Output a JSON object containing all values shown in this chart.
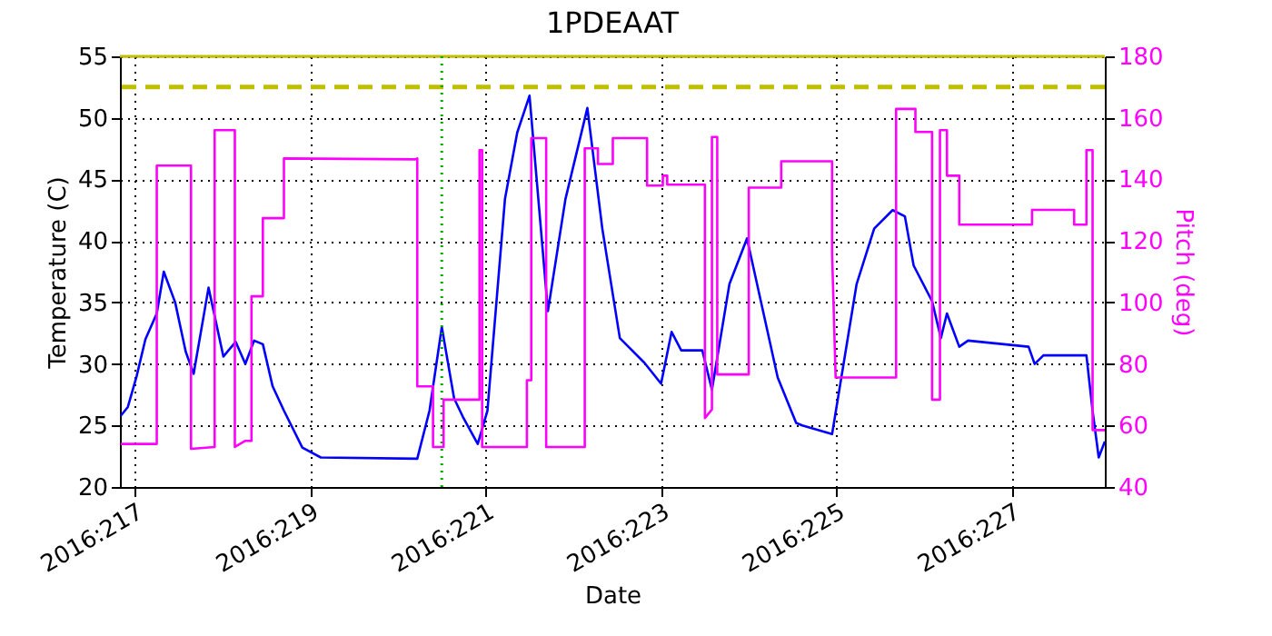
{
  "chart_data": {
    "type": "line",
    "title": "1PDEAAT",
    "xlabel": "Date",
    "ylabel": "Temperature (C)",
    "y2label": "Pitch (deg)",
    "xlim": [
      "2016-08-03T19:55",
      "2016-08-15T01:26"
    ],
    "xticks": [
      {
        "value": "2016-08-04",
        "label": "2016:217"
      },
      {
        "value": "2016-08-06",
        "label": "2016:219"
      },
      {
        "value": "2016-08-08",
        "label": "2016:221"
      },
      {
        "value": "2016-08-10",
        "label": "2016:223"
      },
      {
        "value": "2016-08-12",
        "label": "2016:225"
      },
      {
        "value": "2016-08-14",
        "label": "2016:227"
      }
    ],
    "ylim": [
      20,
      55
    ],
    "yticks": [
      20,
      25,
      30,
      35,
      40,
      45,
      50,
      55
    ],
    "y2lim": [
      40,
      180
    ],
    "y2ticks": [
      40,
      60,
      80,
      100,
      120,
      140,
      160,
      180
    ],
    "grid": true,
    "marker": "none",
    "line_style": "solid",
    "series": [
      {
        "color": "#0000ff",
        "x": [
          "2016-08-03T20:10",
          "2016-08-03T22:05",
          "2016-08-04T00:29",
          "2016-08-04T02:53",
          "2016-08-04T06:00",
          "2016-08-04T07:55",
          "2016-08-04T11:02",
          "2016-08-04T13:55",
          "2016-08-04T16:05",
          "2016-08-04T20:10",
          "2016-08-05T00:14",
          "2016-08-05T03:36",
          "2016-08-05T06:14",
          "2016-08-05T08:38",
          "2016-08-05T11:02",
          "2016-08-05T13:41",
          "2016-08-05T16:48",
          "2016-08-05T21:50",
          "2016-08-06T02:53",
          "2016-08-07T05:17",
          "2016-08-07T08:38",
          "2016-08-07T12:00",
          "2016-08-07T15:22",
          "2016-08-07T17:46",
          "2016-08-07T21:50",
          "2016-08-08T00:29",
          "2016-08-08T05:17",
          "2016-08-08T08:38",
          "2016-08-08T12:00",
          "2016-08-08T17:02",
          "2016-08-08T21:50",
          "2016-08-09T03:50",
          "2016-08-09T07:55",
          "2016-08-09T12:43",
          "2016-08-09T19:26",
          "2016-08-10T00:00",
          "2016-08-10T02:53",
          "2016-08-10T05:31",
          "2016-08-10T11:17",
          "2016-08-10T13:55",
          "2016-08-10T18:43",
          "2016-08-10T23:31",
          "2016-08-11T07:55",
          "2016-08-11T12:58",
          "2016-08-11T14:38",
          "2016-08-11T22:48",
          "2016-08-12T05:31",
          "2016-08-12T10:19",
          "2016-08-12T15:22",
          "2016-08-12T18:43",
          "2016-08-12T21:07",
          "2016-08-13T02:10",
          "2016-08-13T04:34",
          "2016-08-13T06:14",
          "2016-08-13T09:36",
          "2016-08-13T12:00",
          "2016-08-14T04:34",
          "2016-08-14T06:14",
          "2016-08-14T08:38",
          "2016-08-14T20:24",
          "2016-08-14T22:05",
          "2016-08-14T23:46",
          "2016-08-15T01:26"
        ],
        "values": [
          25.8,
          26.5,
          29,
          32,
          34.1,
          37.5,
          35,
          31,
          29.2,
          36.2,
          30.6,
          31.8,
          30.0,
          31.9,
          31.6,
          28.2,
          26.2,
          23.2,
          22.4,
          22.3,
          26.2,
          33.0,
          27.2,
          25.7,
          23.5,
          26.2,
          43.4,
          48.8,
          51.8,
          34.3,
          43.4,
          50.8,
          41.0,
          32.1,
          30.1,
          28.4,
          32.6,
          31.1,
          31.1,
          27.9,
          36.5,
          40.2,
          28.9,
          25.2,
          25.0,
          24.3,
          36.5,
          41.0,
          42.5,
          42.0,
          38.0,
          35.1,
          32.1,
          34.1,
          31.4,
          31.9,
          31.4,
          30.0,
          30.7,
          30.7,
          26.2,
          22.4,
          23.7
        ]
      },
      {
        "color": "#ff00ff",
        "axis": "y2",
        "x": [
          "2016-08-03T20:10",
          "2016-08-04T06:00",
          "2016-08-04T06:00",
          "2016-08-04T15:22",
          "2016-08-04T15:22",
          "2016-08-04T21:50",
          "2016-08-04T21:50",
          "2016-08-05T03:22",
          "2016-08-05T03:22",
          "2016-08-05T06:14",
          "2016-08-05T07:55",
          "2016-08-05T07:55",
          "2016-08-05T11:02",
          "2016-08-05T11:02",
          "2016-08-05T16:48",
          "2016-08-05T16:48",
          "2016-08-07T04:48",
          "2016-08-07T05:17",
          "2016-08-07T05:17",
          "2016-08-07T09:36",
          "2016-08-07T09:36",
          "2016-08-07T12:29",
          "2016-08-07T12:29",
          "2016-08-07T22:19",
          "2016-08-07T22:19",
          "2016-08-07T23:02",
          "2016-08-07T23:02",
          "2016-08-08T11:17",
          "2016-08-08T11:17",
          "2016-08-08T12:29",
          "2016-08-08T12:29",
          "2016-08-08T16:34",
          "2016-08-08T16:34",
          "2016-08-09T03:07",
          "2016-08-09T03:07",
          "2016-08-09T06:43",
          "2016-08-09T06:43",
          "2016-08-09T10:48",
          "2016-08-09T10:48",
          "2016-08-09T20:10",
          "2016-08-09T20:10",
          "2016-08-10T00:29",
          "2016-08-10T00:29",
          "2016-08-10T01:41",
          "2016-08-10T01:41",
          "2016-08-10T12:00",
          "2016-08-10T12:00",
          "2016-08-10T13:55",
          "2016-08-10T13:55",
          "2016-08-10T15:22",
          "2016-08-10T15:22",
          "2016-08-11T00:00",
          "2016-08-11T00:00",
          "2016-08-11T08:53",
          "2016-08-11T08:53",
          "2016-08-11T22:48",
          "2016-08-11T22:48",
          "2016-08-11T23:46",
          "2016-08-12T16:19",
          "2016-08-12T16:19",
          "2016-08-12T21:36",
          "2016-08-12T21:36",
          "2016-08-13T02:10",
          "2016-08-13T02:10",
          "2016-08-13T04:19",
          "2016-08-13T04:19",
          "2016-08-13T06:14",
          "2016-08-13T06:14",
          "2016-08-13T09:36",
          "2016-08-13T09:36",
          "2016-08-14T05:31",
          "2016-08-14T05:31",
          "2016-08-14T17:02",
          "2016-08-14T17:02",
          "2016-08-14T20:24",
          "2016-08-14T20:24",
          "2016-08-14T22:05",
          "2016-08-14T22:05",
          "2016-08-15T01:26"
        ],
        "values": [
          54,
          54,
          144.5,
          144.5,
          52.4,
          53,
          156,
          156,
          53,
          55,
          55,
          102,
          102,
          127.4,
          127.4,
          146.8,
          146.5,
          146.8,
          72.7,
          72.7,
          53,
          53,
          68.4,
          68.4,
          149.5,
          149.5,
          53,
          53,
          74.7,
          74.7,
          153.4,
          153.4,
          53,
          53,
          150.1,
          150.1,
          145,
          145,
          153.4,
          153.4,
          138,
          138,
          141.2,
          141.2,
          138.3,
          138.3,
          62.4,
          65.2,
          153.8,
          153.8,
          76.6,
          76.6,
          137.3,
          137.3,
          145.9,
          145.9,
          116,
          75.6,
          75.6,
          162.9,
          162.9,
          155.4,
          155.4,
          68.4,
          68.4,
          156,
          156,
          141.2,
          141.2,
          125.3,
          125.3,
          130.1,
          130.1,
          125.3,
          125.3,
          149.5,
          149.5,
          58.5,
          58.5
        ]
      }
    ],
    "ref_lines": [
      {
        "axis": "y",
        "value": 52.5,
        "color": "#bfbf00",
        "line_style": "dashed"
      },
      {
        "axis": "y",
        "value": 55,
        "color": "#bfbf00",
        "line_style": "solid"
      },
      {
        "axis": "x",
        "value": "2016-08-07T12:00",
        "color": "#00aa00",
        "line_style": "dotted"
      }
    ]
  }
}
